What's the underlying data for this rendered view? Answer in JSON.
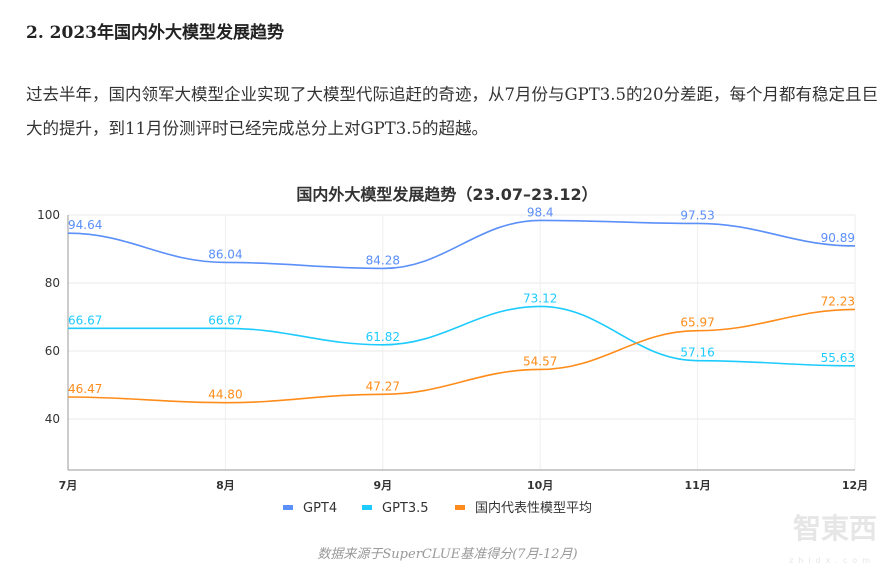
{
  "heading": "2. 2023年国内外大模型发展趋势",
  "paragraph": "过去半年，国内领军大模型企业实现了大模型代际追赶的奇迹，从7月份与GPT3.5的20分差距，每个月都有稳定且巨大的提升，到11月份测评时已经完成总分上对GPT3.5的超越。",
  "source": "数据来源于SuperCLUE基准得分(7月-12月)",
  "watermark": "智東西 zhidx.com",
  "chart_data": {
    "type": "line",
    "title": "国内外大模型发展趋势（23.07–23.12）",
    "categories": [
      "7月",
      "8月",
      "9月",
      "10月",
      "11月",
      "12月"
    ],
    "ylim": [
      25,
      100
    ],
    "yticks": [
      40,
      60,
      80,
      100
    ],
    "grid": true,
    "smooth": true,
    "legend": "bottom",
    "series": [
      {
        "name": "GPT4",
        "color": "#5b8ff9",
        "values": [
          94.64,
          86.04,
          84.28,
          98.4,
          97.53,
          90.89
        ],
        "labels": [
          "94.64",
          "86.04",
          "84.28",
          "98.4",
          "97.53",
          "90.89"
        ]
      },
      {
        "name": "GPT3.5",
        "color": "#1ecbff",
        "values": [
          66.67,
          66.67,
          61.82,
          73.12,
          57.16,
          55.63
        ],
        "labels": [
          "66.67",
          "66.67",
          "61.82",
          "73.12",
          "57.16",
          "55.63"
        ]
      },
      {
        "name": "国内代表性模型平均",
        "color": "#ff8c1a",
        "values": [
          46.47,
          44.8,
          47.27,
          54.57,
          65.97,
          72.23
        ],
        "labels": [
          "46.47",
          "44.80",
          "47.27",
          "54.57",
          "65.97",
          "72.23"
        ]
      }
    ]
  }
}
